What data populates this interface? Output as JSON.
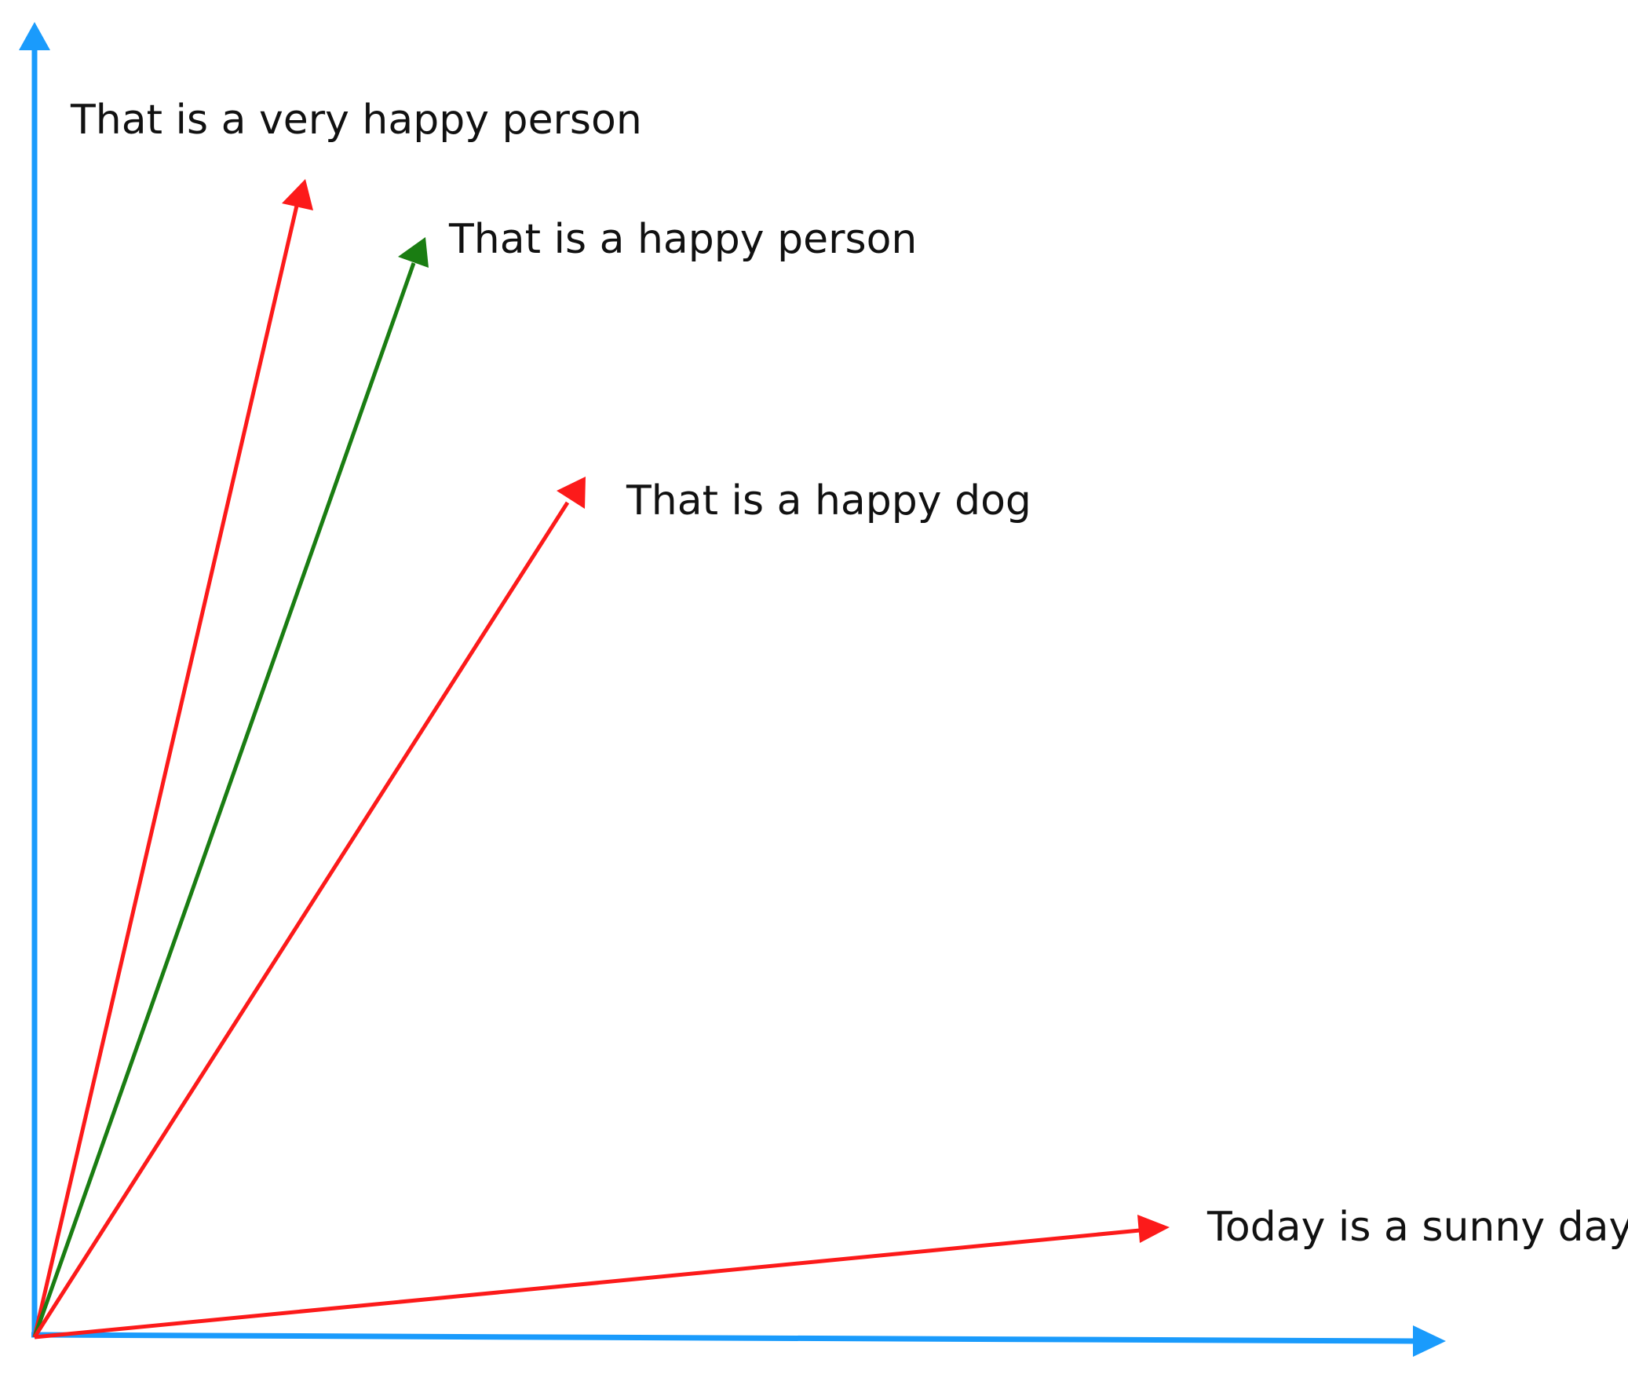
{
  "diagram": {
    "colors": {
      "axis": "#1a9bfc",
      "baseline_vector": "#1a7d12",
      "comparison_vector": "#fc1a1a",
      "text": "#111111",
      "background": "#ffffff"
    },
    "vectors": [
      {
        "id": "very-happy-person",
        "label": "That is a very happy person",
        "role": "comparison"
      },
      {
        "id": "happy-person",
        "label": "That is a happy person",
        "role": "baseline"
      },
      {
        "id": "happy-dog",
        "label": "That is a happy dog",
        "role": "comparison"
      },
      {
        "id": "sunny-day",
        "label": "Today is a sunny day",
        "role": "comparison"
      }
    ]
  }
}
